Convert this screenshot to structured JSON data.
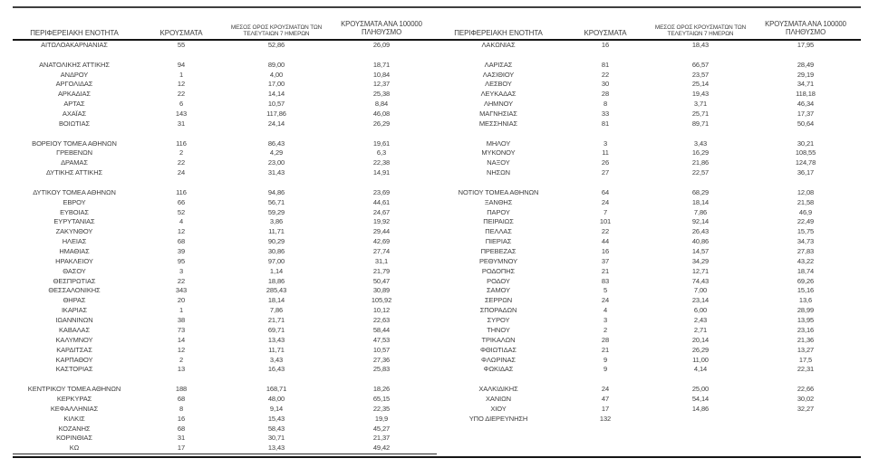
{
  "colors": {
    "text": "#3d3d3d",
    "rule_dark": "#3f3f3f",
    "rule_black": "#151515"
  },
  "table": {
    "headers": {
      "region": "ΠΕΡΙΦΕΡΕΙΑΚΗ ΕΝΟΤΗΤΑ",
      "cases": "ΚΡΟΥΣΜΑΤΑ",
      "avg7_line1": "ΜΕΣΟΣ ΟΡΟΣ ΚΡΟΥΣΜΑΤΩΝ ΤΩΝ",
      "avg7_line2": "ΤΕΛΕΥΤΑΙΩΝ 7 ΗΜΕΡΩΝ",
      "per100k_line1": "ΚΡΟΥΣΜΑΤΑ ΑΝΑ 100000",
      "per100k_line2": "ΠΛΗΘΥΣΜΟ"
    },
    "rows": [
      {
        "l": [
          "ΑΙΤΩΛΟΑΚΑΡΝΑΝΙΑΣ",
          "55",
          "52,86",
          "26,09"
        ],
        "r": [
          "ΛΑΚΩΝΙΑΣ",
          "16",
          "18,43",
          "17,95"
        ]
      },
      {
        "l": null,
        "r": null
      },
      {
        "l": [
          "ΑΝΑΤΟΛΙΚΗΣ ΑΤΤΙΚΗΣ",
          "94",
          "89,00",
          "18,71"
        ],
        "r": [
          "ΛΑΡΙΣΑΣ",
          "81",
          "66,57",
          "28,49"
        ]
      },
      {
        "l": [
          "ΑΝΔΡΟΥ",
          "1",
          "4,00",
          "10,84"
        ],
        "r": [
          "ΛΑΣΙΘΙΟΥ",
          "22",
          "23,57",
          "29,19"
        ]
      },
      {
        "l": [
          "ΑΡΓΟΛΙΔΑΣ",
          "12",
          "17,00",
          "12,37"
        ],
        "r": [
          "ΛΕΣΒΟΥ",
          "30",
          "25,14",
          "34,71"
        ]
      },
      {
        "l": [
          "ΑΡΚΑΔΙΑΣ",
          "22",
          "14,14",
          "25,38"
        ],
        "r": [
          "ΛΕΥΚΑΔΑΣ",
          "28",
          "19,43",
          "118,18"
        ]
      },
      {
        "l": [
          "ΑΡΤΑΣ",
          "6",
          "10,57",
          "8,84"
        ],
        "r": [
          "ΛΗΜΝΟΥ",
          "8",
          "3,71",
          "46,34"
        ]
      },
      {
        "l": [
          "ΑΧΑΪΑΣ",
          "143",
          "117,86",
          "46,08"
        ],
        "r": [
          "ΜΑΓΝΗΣΙΑΣ",
          "33",
          "25,71",
          "17,37"
        ]
      },
      {
        "l": [
          "ΒΟΙΩΤΙΑΣ",
          "31",
          "24,14",
          "26,29"
        ],
        "r": [
          "ΜΕΣΣΗΝΙΑΣ",
          "81",
          "89,71",
          "50,64"
        ]
      },
      {
        "l": null,
        "r": null
      },
      {
        "l": [
          "ΒΟΡΕΙΟΥ ΤΟΜΕΑ ΑΘΗΝΩΝ",
          "116",
          "86,43",
          "19,61"
        ],
        "r": [
          "ΜΗΛΟΥ",
          "3",
          "3,43",
          "30,21"
        ]
      },
      {
        "l": [
          "ΓΡΕΒΕΝΩΝ",
          "2",
          "4,29",
          "6,3"
        ],
        "r": [
          "ΜΥΚΟΝΟΥ",
          "11",
          "16,29",
          "108,55"
        ]
      },
      {
        "l": [
          "ΔΡΑΜΑΣ",
          "22",
          "23,00",
          "22,38"
        ],
        "r": [
          "ΝΑΞΟΥ",
          "26",
          "21,86",
          "124,78"
        ]
      },
      {
        "l": [
          "ΔΥΤΙΚΗΣ ΑΤΤΙΚΗΣ",
          "24",
          "31,43",
          "14,91"
        ],
        "r": [
          "ΝΗΣΩΝ",
          "27",
          "22,57",
          "36,17"
        ]
      },
      {
        "l": null,
        "r": null
      },
      {
        "l": [
          "ΔΥΤΙΚΟΥ ΤΟΜΕΑ ΑΘΗΝΩΝ",
          "116",
          "94,86",
          "23,69"
        ],
        "r": [
          "ΝΟΤΙΟΥ ΤΟΜΕΑ ΑΘΗΝΩΝ",
          "64",
          "68,29",
          "12,08"
        ]
      },
      {
        "l": [
          "ΕΒΡΟΥ",
          "66",
          "56,71",
          "44,61"
        ],
        "r": [
          "ΞΑΝΘΗΣ",
          "24",
          "18,14",
          "21,58"
        ]
      },
      {
        "l": [
          "ΕΥΒΟΙΑΣ",
          "52",
          "59,29",
          "24,67"
        ],
        "r": [
          "ΠΑΡΟΥ",
          "7",
          "7,86",
          "46,9"
        ]
      },
      {
        "l": [
          "ΕΥΡΥΤΑΝΙΑΣ",
          "4",
          "3,86",
          "19,92"
        ],
        "r": [
          "ΠΕΙΡΑΙΩΣ",
          "101",
          "92,14",
          "22,49"
        ]
      },
      {
        "l": [
          "ΖΑΚΥΝΘΟΥ",
          "12",
          "11,71",
          "29,44"
        ],
        "r": [
          "ΠΕΛΛΑΣ",
          "22",
          "26,43",
          "15,75"
        ]
      },
      {
        "l": [
          "ΗΛΕΙΑΣ",
          "68",
          "90,29",
          "42,69"
        ],
        "r": [
          "ΠΙΕΡΙΑΣ",
          "44",
          "40,86",
          "34,73"
        ]
      },
      {
        "l": [
          "ΗΜΑΘΙΑΣ",
          "39",
          "30,86",
          "27,74"
        ],
        "r": [
          "ΠΡΕΒΕΖΑΣ",
          "16",
          "14,57",
          "27,83"
        ]
      },
      {
        "l": [
          "ΗΡΑΚΛΕΙΟΥ",
          "95",
          "97,00",
          "31,1"
        ],
        "r": [
          "ΡΕΘΥΜΝΟΥ",
          "37",
          "34,29",
          "43,22"
        ]
      },
      {
        "l": [
          "ΘΑΣΟΥ",
          "3",
          "1,14",
          "21,79"
        ],
        "r": [
          "ΡΟΔΟΠΗΣ",
          "21",
          "12,71",
          "18,74"
        ]
      },
      {
        "l": [
          "ΘΕΣΠΡΩΤΙΑΣ",
          "22",
          "18,86",
          "50,47"
        ],
        "r": [
          "ΡΟΔΟΥ",
          "83",
          "74,43",
          "69,26"
        ]
      },
      {
        "l": [
          "ΘΕΣΣΑΛΟΝΙΚΗΣ",
          "343",
          "285,43",
          "30,89"
        ],
        "r": [
          "ΣΑΜΟΥ",
          "5",
          "7,00",
          "15,16"
        ]
      },
      {
        "l": [
          "ΘΗΡΑΣ",
          "20",
          "18,14",
          "105,92"
        ],
        "r": [
          "ΣΕΡΡΩΝ",
          "24",
          "23,14",
          "13,6"
        ]
      },
      {
        "l": [
          "ΙΚΑΡΙΑΣ",
          "1",
          "7,86",
          "10,12"
        ],
        "r": [
          "ΣΠΟΡΑΔΩΝ",
          "4",
          "6,00",
          "28,99"
        ]
      },
      {
        "l": [
          "ΙΩΑΝΝΙΝΩΝ",
          "38",
          "21,71",
          "22,63"
        ],
        "r": [
          "ΣΥΡΟΥ",
          "3",
          "2,43",
          "13,95"
        ]
      },
      {
        "l": [
          "ΚΑΒΑΛΑΣ",
          "73",
          "69,71",
          "58,44"
        ],
        "r": [
          "ΤΗΝΟΥ",
          "2",
          "2,71",
          "23,16"
        ]
      },
      {
        "l": [
          "ΚΑΛΥΜΝΟΥ",
          "14",
          "13,43",
          "47,53"
        ],
        "r": [
          "ΤΡΙΚΑΛΩΝ",
          "28",
          "20,14",
          "21,36"
        ]
      },
      {
        "l": [
          "ΚΑΡΔΙΤΣΑΣ",
          "12",
          "11,71",
          "10,57"
        ],
        "r": [
          "ΦΘΙΩΤΙΔΑΣ",
          "21",
          "26,29",
          "13,27"
        ]
      },
      {
        "l": [
          "ΚΑΡΠΑΘΟΥ",
          "2",
          "3,43",
          "27,36"
        ],
        "r": [
          "ΦΛΩΡΙΝΑΣ",
          "9",
          "11,00",
          "17,5"
        ]
      },
      {
        "l": [
          "ΚΑΣΤΟΡΙΑΣ",
          "13",
          "16,43",
          "25,83"
        ],
        "r": [
          "ΦΩΚΙΔΑΣ",
          "9",
          "4,14",
          "22,31"
        ]
      },
      {
        "l": null,
        "r": null
      },
      {
        "l": [
          "ΚΕΝΤΡΙΚΟΥ ΤΟΜΕΑ ΑΘΗΝΩΝ",
          "188",
          "168,71",
          "18,26"
        ],
        "r": [
          "ΧΑΛΚΙΔΙΚΗΣ",
          "24",
          "25,00",
          "22,66"
        ]
      },
      {
        "l": [
          "ΚΕΡΚΥΡΑΣ",
          "68",
          "48,00",
          "65,15"
        ],
        "r": [
          "ΧΑΝΙΩΝ",
          "47",
          "54,14",
          "30,02"
        ]
      },
      {
        "l": [
          "ΚΕΦΑΛΛΗΝΙΑΣ",
          "8",
          "9,14",
          "22,35"
        ],
        "r": [
          "ΧΙΟΥ",
          "17",
          "14,86",
          "32,27"
        ]
      },
      {
        "l": [
          "ΚΙΛΚΙΣ",
          "16",
          "15,43",
          "19,9"
        ],
        "r": [
          "ΥΠΟ ΔΙΕΡΕΥΝΗΣΗ",
          "132",
          "",
          ""
        ]
      },
      {
        "l": [
          "ΚΟΖΑΝΗΣ",
          "68",
          "58,43",
          "45,27"
        ],
        "r": null
      },
      {
        "l": [
          "ΚΟΡΙΝΘΙΑΣ",
          "31",
          "30,71",
          "21,37"
        ],
        "r": null
      },
      {
        "l": [
          "ΚΩ",
          "17",
          "13,43",
          "49,42"
        ],
        "r": null
      }
    ]
  }
}
